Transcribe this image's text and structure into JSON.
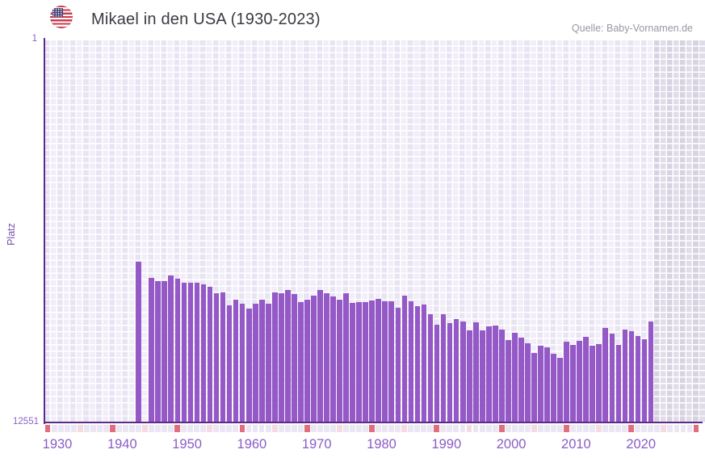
{
  "header": {
    "title": "Mikael in den USA (1930-2023)",
    "source": "Quelle: Baby-Vornamen.de"
  },
  "y_axis": {
    "label": "Platz",
    "top_tick": "1",
    "bottom_tick": "12551"
  },
  "x_axis": {
    "decade_labels": [
      "1930",
      "1940",
      "1950",
      "1960",
      "1970",
      "1980",
      "1990",
      "2000",
      "2010",
      "2020"
    ]
  },
  "colors": {
    "bar": "#9459c6",
    "axis": "#5b2c87",
    "tick10": "#e16e7e",
    "tick5": "#f6dae1",
    "tick1": "#ebe6f4",
    "label": "#8a5cc6",
    "ylabel": "#8a63c5",
    "platz": "#7a4fae",
    "title": "#3a3a42",
    "source": "#9a97a3"
  },
  "chart_data": {
    "type": "bar",
    "title": "Mikael in den USA (1930-2023)",
    "xlabel": "",
    "ylabel": "Platz",
    "y_scale": "log",
    "y_inverted": true,
    "ylim": [
      1,
      12551
    ],
    "x_range": [
      1930,
      2030
    ],
    "grid": true,
    "legend": false,
    "missing_years": [
      1945
    ],
    "years": [
      1944,
      1946,
      1947,
      1948,
      1949,
      1950,
      1951,
      1952,
      1953,
      1954,
      1955,
      1956,
      1957,
      1958,
      1959,
      1960,
      1961,
      1962,
      1963,
      1964,
      1965,
      1966,
      1967,
      1968,
      1969,
      1970,
      1971,
      1972,
      1973,
      1974,
      1975,
      1976,
      1977,
      1978,
      1979,
      1980,
      1981,
      1982,
      1983,
      1984,
      1985,
      1986,
      1987,
      1988,
      1989,
      1990,
      1991,
      1992,
      1993,
      1994,
      1995,
      1996,
      1997,
      1998,
      1999,
      2000,
      2001,
      2002,
      2003,
      2004,
      2005,
      2006,
      2007,
      2008,
      2009,
      2010,
      2011,
      2012,
      2013,
      2014,
      2015,
      2016,
      2017,
      2018,
      2019,
      2020,
      2021,
      2022,
      2023
    ],
    "ranks": [
      237,
      350,
      380,
      380,
      335,
      360,
      400,
      395,
      400,
      414,
      440,
      520,
      505,
      695,
      605,
      668,
      753,
      665,
      610,
      665,
      500,
      510,
      475,
      530,
      640,
      610,
      550,
      480,
      520,
      560,
      605,
      516,
      655,
      642,
      642,
      617,
      593,
      630,
      630,
      738,
      547,
      630,
      710,
      682,
      866,
      1123,
      866,
      1079,
      976,
      1037,
      1291,
      1058,
      1291,
      1168,
      1145,
      1266,
      1640,
      1370,
      1545,
      1777,
      2258,
      1886,
      1962,
      2303,
      2545,
      1707,
      1849,
      1673,
      1515,
      1886,
      1813,
      1216,
      1398,
      1849,
      1266,
      1317,
      1485,
      1608,
      1037
    ]
  }
}
